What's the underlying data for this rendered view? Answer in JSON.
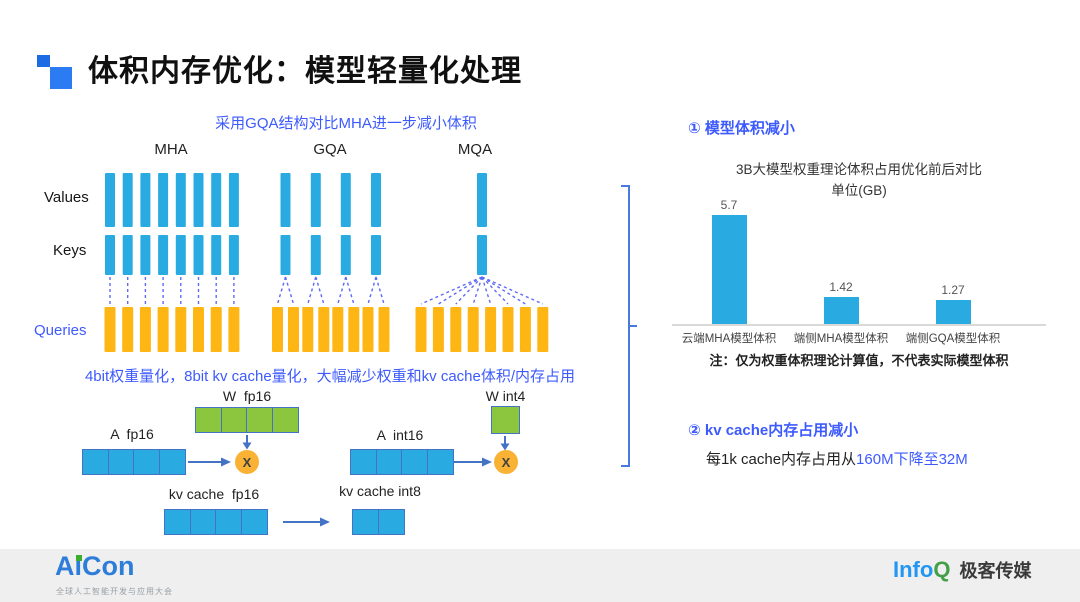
{
  "slide": {
    "title": "体积内存优化：模型轻量化处理"
  },
  "attention": {
    "subtitle": "采用GQA结构对比MHA进一步减小体积",
    "row_labels": {
      "values": "Values",
      "keys": "Keys",
      "queries": "Queries"
    },
    "groups": [
      {
        "label": "MHA",
        "kv_count": 8,
        "q_count": 8,
        "mapping": "one-to-one"
      },
      {
        "label": "GQA",
        "kv_count": 4,
        "q_count": 8,
        "mapping": "one-to-two"
      },
      {
        "label": "MQA",
        "kv_count": 1,
        "q_count": 8,
        "mapping": "one-to-all"
      }
    ]
  },
  "quantization": {
    "headline": "4bit权重量化，8bit kv cache量化，大幅减少权重和kv cache体积/内存占用",
    "matmul_fp16": {
      "weight_label": "W  fp16",
      "weight_cells": 4,
      "activation_label": "A  fp16",
      "activation_cells": 4,
      "operator": "X"
    },
    "matmul_int": {
      "weight_label": "W int4",
      "weight_cells": 1,
      "activation_label": "A  int16",
      "activation_cells": 4,
      "operator": "X"
    },
    "kv_fp16": {
      "label": "kv cache  fp16",
      "cells": 4
    },
    "kv_int8": {
      "label": "kv cache int8",
      "cells": 2
    }
  },
  "results": {
    "section1_title": "① 模型体积减小",
    "section2_title": "② kv cache内存占用减小",
    "section2_text": "每1k cache内存占用从",
    "section2_highlight": "160M下降至32M"
  },
  "chart_data": {
    "type": "bar",
    "title": "3B大模型权重理论体积占用优化前后对比",
    "unit_label": "单位(GB)",
    "categories": [
      "云端MHA模型体积",
      "端侧MHA模型体积",
      "端侧GQA模型体积"
    ],
    "values": [
      5.7,
      1.42,
      1.27
    ],
    "note": "注：仅为权重体积理论计算值，不代表实际模型体积",
    "ylim": [
      0,
      6
    ],
    "bar_color": "#29ABE2",
    "grid": false,
    "legend": false
  },
  "footer": {
    "brand": "AiCon",
    "brand_tagline": "全球人工智能开发与应用大会",
    "publisher_info": "Info",
    "publisher_q": "Q",
    "publisher_suffix": "极客传媒"
  },
  "colors": {
    "accent_blue": "#3D5AFE",
    "bar_cyan": "#29ABE2",
    "bar_yellow": "#FDB614",
    "cell_green": "#8CC63F",
    "arrow_blue": "#4472C4",
    "operator_orange": "#F9B233",
    "title_icon_blue": "#2B7BF3",
    "connector_dash": "#5F6BF7"
  }
}
